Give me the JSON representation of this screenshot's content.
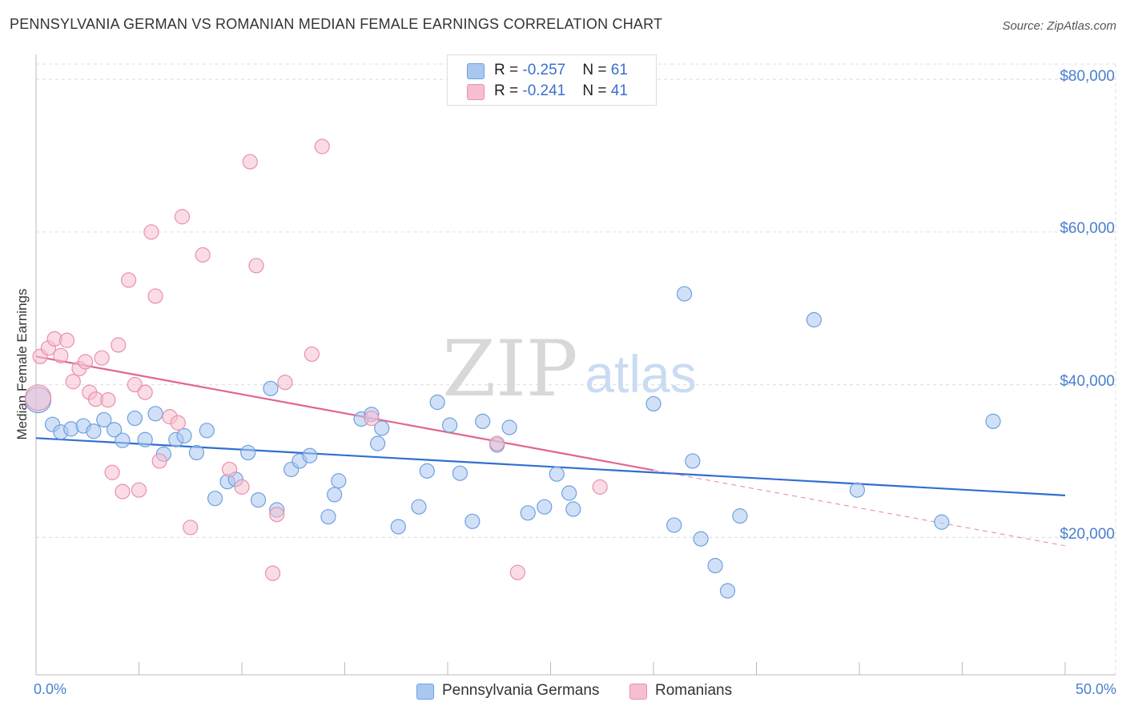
{
  "title": "PENNSYLVANIA GERMAN VS ROMANIAN MEDIAN FEMALE EARNINGS CORRELATION CHART",
  "source": "Source: ZipAtlas.com",
  "watermark": {
    "zip": "ZIP",
    "atlas": "atlas"
  },
  "legend_top": [
    {
      "r_label": "R = ",
      "r_value": "-0.257",
      "n_label": "N = ",
      "n_value": "61"
    },
    {
      "r_label": "R = ",
      "r_value": "-0.241",
      "n_label": "N = ",
      "n_value": "41"
    }
  ],
  "chart_data": {
    "type": "scatter",
    "ylabel": "Median Female Earnings",
    "xlim": [
      0,
      50
    ],
    "ylim": [
      2000,
      82000
    ],
    "x_tick_labels": [
      "0.0%",
      "50.0%"
    ],
    "y_ticks": [
      20000,
      40000,
      60000,
      80000
    ],
    "y_tick_labels": [
      "$20,000",
      "$40,000",
      "$60,000",
      "$80,000"
    ],
    "grid": true,
    "colors": {
      "blue": "#a9c8f0",
      "blue_stroke": "#6f9fe0",
      "blue_line": "#2f6fd0",
      "pink": "#f6bfd0",
      "pink_stroke": "#e890ad",
      "pink_line": "#e0658f",
      "axis_text": "#4a7fd0"
    },
    "series": [
      {
        "name": "Pennsylvania Germans",
        "color": "blue",
        "trend": {
          "x0": 0,
          "y0": 33000,
          "x1": 50,
          "y1": 25500
        },
        "points": [
          [
            0.1,
            38000
          ],
          [
            0.8,
            34800
          ],
          [
            1.2,
            33800
          ],
          [
            1.7,
            34200
          ],
          [
            2.3,
            34600
          ],
          [
            2.8,
            33900
          ],
          [
            3.3,
            35400
          ],
          [
            3.8,
            34100
          ],
          [
            4.2,
            32700
          ],
          [
            4.8,
            35600
          ],
          [
            5.3,
            32800
          ],
          [
            5.8,
            36200
          ],
          [
            6.2,
            30900
          ],
          [
            6.8,
            32800
          ],
          [
            7.2,
            33300
          ],
          [
            7.8,
            31100
          ],
          [
            8.3,
            34000
          ],
          [
            8.7,
            25100
          ],
          [
            9.3,
            27300
          ],
          [
            9.7,
            27600
          ],
          [
            10.3,
            31100
          ],
          [
            10.8,
            24900
          ],
          [
            11.4,
            39500
          ],
          [
            11.7,
            23600
          ],
          [
            12.4,
            28900
          ],
          [
            12.8,
            30000
          ],
          [
            13.3,
            30700
          ],
          [
            14.2,
            22700
          ],
          [
            14.5,
            25600
          ],
          [
            14.7,
            27400
          ],
          [
            15.8,
            35500
          ],
          [
            16.3,
            36100
          ],
          [
            16.6,
            32300
          ],
          [
            16.8,
            34300
          ],
          [
            17.6,
            21400
          ],
          [
            18.6,
            24000
          ],
          [
            19.0,
            28700
          ],
          [
            19.5,
            37700
          ],
          [
            20.1,
            34700
          ],
          [
            20.6,
            28400
          ],
          [
            21.2,
            22100
          ],
          [
            21.7,
            35200
          ],
          [
            22.4,
            32100
          ],
          [
            23.0,
            34400
          ],
          [
            23.9,
            23200
          ],
          [
            24.7,
            24000
          ],
          [
            25.3,
            28300
          ],
          [
            25.9,
            25800
          ],
          [
            26.1,
            23700
          ],
          [
            30.0,
            37500
          ],
          [
            31.0,
            21600
          ],
          [
            31.5,
            51900
          ],
          [
            31.9,
            30000
          ],
          [
            32.3,
            19800
          ],
          [
            33.0,
            16300
          ],
          [
            33.6,
            13000
          ],
          [
            34.2,
            22800
          ],
          [
            37.8,
            48500
          ],
          [
            39.9,
            26200
          ],
          [
            44.0,
            22000
          ],
          [
            46.5,
            35200
          ]
        ]
      },
      {
        "name": "Romanians",
        "color": "pink",
        "trend": {
          "x0": 0,
          "y0": 43700,
          "x1": 30.0,
          "y1": 28800
        },
        "trend_dashed": {
          "x0": 30.0,
          "y0": 28800,
          "x1": 50,
          "y1": 18900
        },
        "points": [
          [
            0.2,
            43700
          ],
          [
            0.6,
            44800
          ],
          [
            0.9,
            46000
          ],
          [
            1.2,
            43800
          ],
          [
            1.5,
            45800
          ],
          [
            1.8,
            40400
          ],
          [
            2.1,
            42100
          ],
          [
            2.4,
            43000
          ],
          [
            2.6,
            39000
          ],
          [
            2.9,
            38100
          ],
          [
            3.2,
            43500
          ],
          [
            3.5,
            38000
          ],
          [
            3.7,
            28500
          ],
          [
            4.0,
            45200
          ],
          [
            4.2,
            26000
          ],
          [
            4.5,
            53700
          ],
          [
            4.8,
            40000
          ],
          [
            5.0,
            26200
          ],
          [
            5.3,
            39000
          ],
          [
            5.6,
            60000
          ],
          [
            5.8,
            51600
          ],
          [
            6.0,
            30000
          ],
          [
            6.5,
            35800
          ],
          [
            6.9,
            35000
          ],
          [
            7.1,
            62000
          ],
          [
            7.5,
            21300
          ],
          [
            8.1,
            57000
          ],
          [
            9.4,
            28900
          ],
          [
            10.0,
            26600
          ],
          [
            10.4,
            69200
          ],
          [
            10.7,
            55600
          ],
          [
            11.7,
            23000
          ],
          [
            11.5,
            15300
          ],
          [
            12.1,
            40300
          ],
          [
            13.4,
            44000
          ],
          [
            13.9,
            71200
          ],
          [
            16.3,
            35600
          ],
          [
            22.4,
            32300
          ],
          [
            23.4,
            15400
          ],
          [
            27.4,
            26600
          ],
          [
            0.1,
            38300
          ]
        ]
      }
    ]
  }
}
